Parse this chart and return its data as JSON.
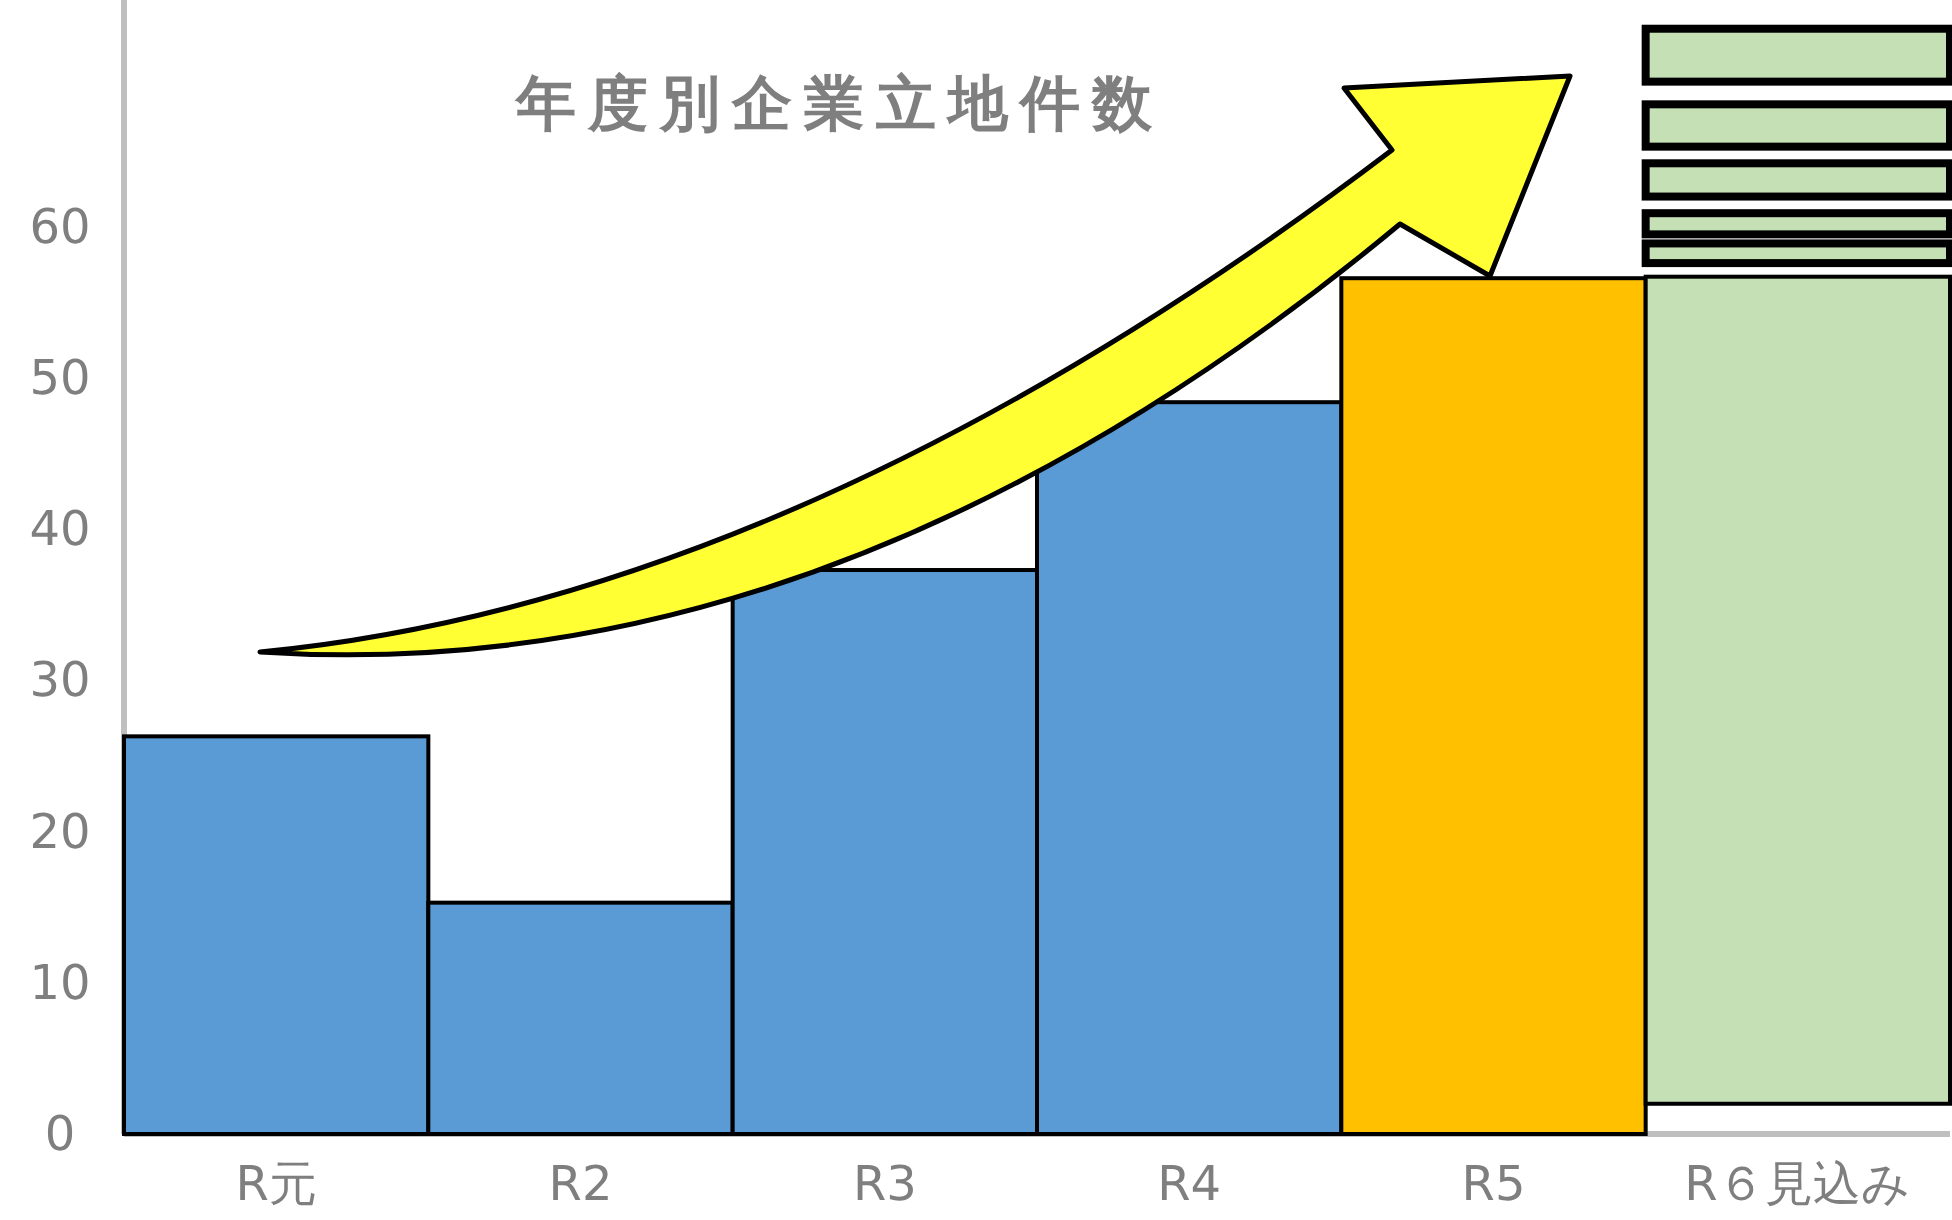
{
  "chart_data": {
    "type": "bar",
    "title": "年度別企業立地件数",
    "categories": [
      "R元",
      "R2",
      "R3",
      "R4",
      "R5",
      "R６見込み"
    ],
    "ylim": [
      0,
      75
    ],
    "yticks": [
      0,
      10,
      20,
      30,
      40,
      50,
      60
    ],
    "grid": false,
    "series": [
      {
        "colors": [
          "#5b9bd5",
          "#5b9bd5",
          "#5b9bd5",
          "#5b9bd5",
          "#ffc000",
          "#c5e0b4"
        ],
        "values": [
          26.3,
          15.3,
          37.3,
          48.4,
          56.6,
          54.7
        ],
        "base": [
          0,
          0,
          0,
          0,
          0,
          2
        ]
      },
      {
        "color": "#c5e0b4",
        "values": [
          null,
          null,
          null,
          null,
          null,
          1.3
        ],
        "base": [
          null,
          null,
          null,
          null,
          null,
          57.6
        ]
      },
      {
        "color": "#c5e0b4",
        "values": [
          null,
          null,
          null,
          null,
          null,
          1.4
        ],
        "base": [
          null,
          null,
          null,
          null,
          null,
          59.5
        ]
      },
      {
        "color": "#c5e0b4",
        "values": [
          null,
          null,
          null,
          null,
          null,
          2.2
        ],
        "base": [
          null,
          null,
          null,
          null,
          null,
          62.0
        ]
      },
      {
        "color": "#c5e0b4",
        "values": [
          null,
          null,
          null,
          null,
          null,
          2.8
        ],
        "base": [
          null,
          null,
          null,
          null,
          null,
          65.3
        ]
      },
      {
        "color": "#c5e0b4",
        "values": [
          null,
          null,
          null,
          null,
          null,
          3.5
        ],
        "base": [
          null,
          null,
          null,
          null,
          null,
          69.6
        ]
      }
    ]
  }
}
